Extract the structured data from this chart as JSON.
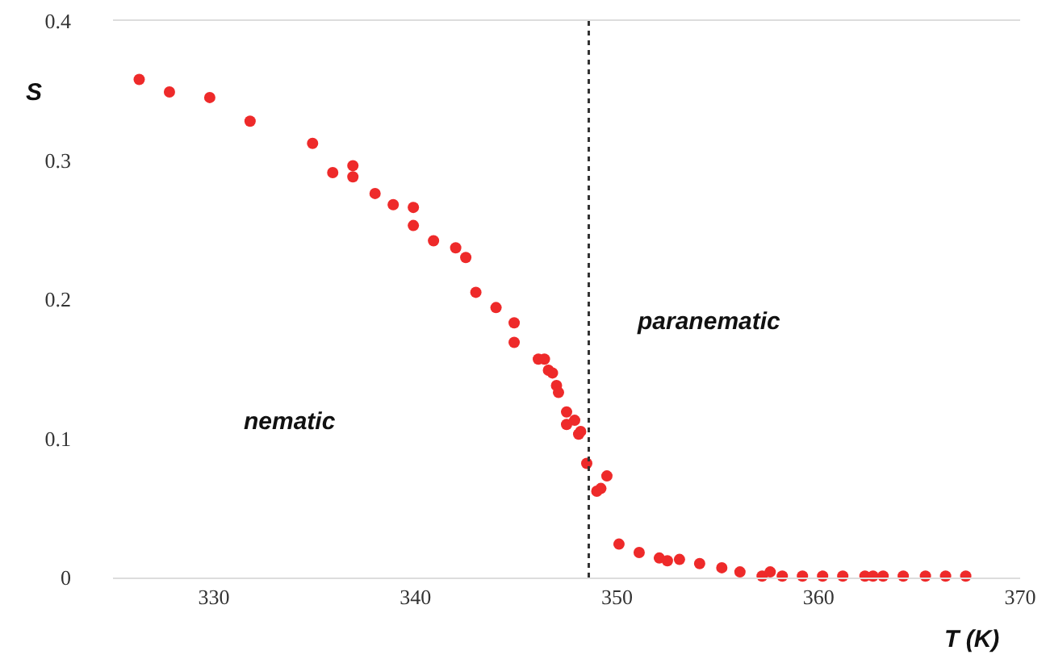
{
  "chart_data": {
    "type": "scatter",
    "xlabel": "T (K)",
    "ylabel": "S",
    "x": [
      326.3,
      327.8,
      329.8,
      331.8,
      334.9,
      335.9,
      336.9,
      336.9,
      338.0,
      338.9,
      339.9,
      339.9,
      340.9,
      342.0,
      342.5,
      343.0,
      344.0,
      344.9,
      344.9,
      346.1,
      346.4,
      346.6,
      346.8,
      347.0,
      347.1,
      347.5,
      347.9,
      347.5,
      348.1,
      348.2,
      348.5,
      349.5,
      349.2,
      349.0,
      350.1,
      351.1,
      352.1,
      352.5,
      353.1,
      354.1,
      355.2,
      356.1,
      357.2,
      357.6,
      358.2,
      359.2,
      360.2,
      361.2,
      362.3,
      362.7,
      363.2,
      364.2,
      365.3,
      366.3,
      367.3
    ],
    "values": [
      0.358,
      0.349,
      0.345,
      0.328,
      0.312,
      0.291,
      0.296,
      0.288,
      0.276,
      0.268,
      0.266,
      0.253,
      0.242,
      0.237,
      0.23,
      0.205,
      0.194,
      0.183,
      0.169,
      0.157,
      0.157,
      0.149,
      0.147,
      0.138,
      0.133,
      0.119,
      0.113,
      0.11,
      0.103,
      0.105,
      0.082,
      0.073,
      0.064,
      0.062,
      0.024,
      0.018,
      0.014,
      0.012,
      0.013,
      0.01,
      0.007,
      0.004,
      0.001,
      0.004,
      0.001,
      0.001,
      0.001,
      0.001,
      0.001,
      0.001,
      0.001,
      0.001,
      0.001,
      0.001,
      0.001
    ],
    "color": "#ee2a2a",
    "marker": "circle",
    "xlim": [
      325,
      370
    ],
    "xticks": [
      330,
      340,
      350,
      360,
      370
    ],
    "ylim": [
      0,
      0.4
    ],
    "yticks": [
      0,
      0.1,
      0.2,
      0.3,
      0.4
    ],
    "grid": false,
    "ref_lines": [
      {
        "axis": "x",
        "value": 348.6,
        "line_style": "dotted",
        "color": "#333333"
      }
    ],
    "annotations": [
      "nematic",
      "paranematic"
    ]
  }
}
